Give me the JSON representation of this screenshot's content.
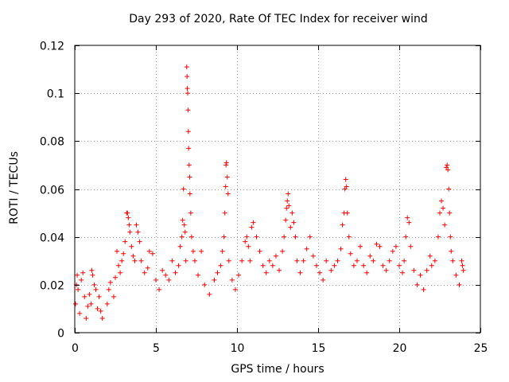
{
  "chart_data": {
    "type": "scatter",
    "title": "Day 293 of 2020, Rate Of TEC Index for receiver wind",
    "xlabel": "GPS time / hours",
    "ylabel": "ROTI / TECUs",
    "xlim": [
      0,
      25
    ],
    "ylim": [
      0,
      0.12
    ],
    "xticks": [
      "0",
      "5",
      "10",
      "15",
      "20",
      "25"
    ],
    "yticks": [
      "0",
      "0.02",
      "0.04",
      "0.06",
      "0.08",
      "0.1",
      "0.12"
    ],
    "grid": true,
    "marker": "+",
    "color": "#ff0000",
    "series": [
      {
        "points": [
          [
            0.05,
            0.012
          ],
          [
            0.1,
            0.02
          ],
          [
            0.15,
            0.024
          ],
          [
            0.2,
            0.018
          ],
          [
            0.3,
            0.008
          ],
          [
            0.4,
            0.022
          ],
          [
            0.5,
            0.025
          ],
          [
            0.6,
            0.015
          ],
          [
            0.7,
            0.006
          ],
          [
            0.8,
            0.011
          ],
          [
            0.9,
            0.016
          ],
          [
            1.0,
            0.012
          ],
          [
            1.05,
            0.026
          ],
          [
            1.1,
            0.024
          ],
          [
            1.2,
            0.02
          ],
          [
            1.3,
            0.018
          ],
          [
            1.4,
            0.01
          ],
          [
            1.5,
            0.015
          ],
          [
            1.6,
            0.009
          ],
          [
            1.7,
            0.006
          ],
          [
            2.0,
            0.012
          ],
          [
            2.1,
            0.018
          ],
          [
            2.2,
            0.021
          ],
          [
            2.4,
            0.015
          ],
          [
            2.5,
            0.023
          ],
          [
            2.6,
            0.034
          ],
          [
            2.7,
            0.028
          ],
          [
            2.8,
            0.025
          ],
          [
            2.9,
            0.03
          ],
          [
            3.0,
            0.033
          ],
          [
            3.1,
            0.038
          ],
          [
            3.2,
            0.05
          ],
          [
            3.25,
            0.05
          ],
          [
            3.3,
            0.048
          ],
          [
            3.35,
            0.045
          ],
          [
            3.4,
            0.042
          ],
          [
            3.5,
            0.036
          ],
          [
            3.6,
            0.032
          ],
          [
            3.7,
            0.03
          ],
          [
            3.8,
            0.045
          ],
          [
            3.9,
            0.042
          ],
          [
            4.0,
            0.038
          ],
          [
            4.1,
            0.03
          ],
          [
            4.3,
            0.025
          ],
          [
            4.5,
            0.027
          ],
          [
            4.6,
            0.034
          ],
          [
            4.8,
            0.033
          ],
          [
            5.0,
            0.022
          ],
          [
            5.2,
            0.018
          ],
          [
            5.4,
            0.026
          ],
          [
            5.6,
            0.024
          ],
          [
            5.8,
            0.022
          ],
          [
            6.0,
            0.03
          ],
          [
            6.2,
            0.025
          ],
          [
            6.4,
            0.028
          ],
          [
            6.5,
            0.036
          ],
          [
            6.6,
            0.04
          ],
          [
            6.65,
            0.047
          ],
          [
            6.7,
            0.06
          ],
          [
            6.75,
            0.045
          ],
          [
            6.8,
            0.042
          ],
          [
            6.85,
            0.03
          ],
          [
            6.9,
            0.111
          ],
          [
            6.92,
            0.107
          ],
          [
            6.94,
            0.102
          ],
          [
            6.96,
            0.1
          ],
          [
            6.98,
            0.093
          ],
          [
            7.0,
            0.084
          ],
          [
            7.02,
            0.077
          ],
          [
            7.05,
            0.07
          ],
          [
            7.08,
            0.065
          ],
          [
            7.1,
            0.058
          ],
          [
            7.15,
            0.05
          ],
          [
            7.2,
            0.04
          ],
          [
            7.3,
            0.034
          ],
          [
            7.4,
            0.03
          ],
          [
            7.6,
            0.024
          ],
          [
            7.8,
            0.034
          ],
          [
            8.0,
            0.02
          ],
          [
            8.3,
            0.016
          ],
          [
            8.6,
            0.022
          ],
          [
            8.8,
            0.025
          ],
          [
            9.0,
            0.028
          ],
          [
            9.1,
            0.034
          ],
          [
            9.2,
            0.04
          ],
          [
            9.25,
            0.05
          ],
          [
            9.3,
            0.061
          ],
          [
            9.32,
            0.07
          ],
          [
            9.35,
            0.071
          ],
          [
            9.4,
            0.065
          ],
          [
            9.45,
            0.058
          ],
          [
            9.5,
            0.03
          ],
          [
            9.7,
            0.022
          ],
          [
            9.9,
            0.018
          ],
          [
            10.1,
            0.024
          ],
          [
            10.3,
            0.03
          ],
          [
            10.5,
            0.038
          ],
          [
            10.6,
            0.04
          ],
          [
            10.7,
            0.036
          ],
          [
            10.8,
            0.03
          ],
          [
            10.9,
            0.044
          ],
          [
            11.0,
            0.046
          ],
          [
            11.2,
            0.04
          ],
          [
            11.4,
            0.034
          ],
          [
            11.6,
            0.028
          ],
          [
            11.8,
            0.025
          ],
          [
            12.0,
            0.03
          ],
          [
            12.2,
            0.028
          ],
          [
            12.4,
            0.032
          ],
          [
            12.6,
            0.026
          ],
          [
            12.8,
            0.034
          ],
          [
            12.9,
            0.04
          ],
          [
            13.0,
            0.047
          ],
          [
            13.05,
            0.052
          ],
          [
            13.1,
            0.055
          ],
          [
            13.15,
            0.058
          ],
          [
            13.2,
            0.053
          ],
          [
            13.3,
            0.044
          ],
          [
            13.4,
            0.05
          ],
          [
            13.5,
            0.046
          ],
          [
            13.6,
            0.04
          ],
          [
            13.7,
            0.03
          ],
          [
            13.9,
            0.025
          ],
          [
            14.1,
            0.03
          ],
          [
            14.3,
            0.035
          ],
          [
            14.5,
            0.04
          ],
          [
            14.7,
            0.032
          ],
          [
            14.9,
            0.028
          ],
          [
            15.1,
            0.025
          ],
          [
            15.3,
            0.022
          ],
          [
            15.5,
            0.03
          ],
          [
            15.8,
            0.026
          ],
          [
            16.0,
            0.028
          ],
          [
            16.2,
            0.03
          ],
          [
            16.4,
            0.035
          ],
          [
            16.5,
            0.045
          ],
          [
            16.6,
            0.05
          ],
          [
            16.65,
            0.06
          ],
          [
            16.7,
            0.064
          ],
          [
            16.75,
            0.061
          ],
          [
            16.8,
            0.05
          ],
          [
            16.9,
            0.04
          ],
          [
            17.0,
            0.033
          ],
          [
            17.2,
            0.028
          ],
          [
            17.4,
            0.03
          ],
          [
            17.6,
            0.036
          ],
          [
            17.8,
            0.028
          ],
          [
            18.0,
            0.025
          ],
          [
            18.2,
            0.032
          ],
          [
            18.4,
            0.03
          ],
          [
            18.6,
            0.037
          ],
          [
            18.8,
            0.036
          ],
          [
            19.0,
            0.028
          ],
          [
            19.2,
            0.026
          ],
          [
            19.4,
            0.03
          ],
          [
            19.6,
            0.034
          ],
          [
            19.8,
            0.036
          ],
          [
            20.0,
            0.028
          ],
          [
            20.2,
            0.025
          ],
          [
            20.3,
            0.03
          ],
          [
            20.4,
            0.04
          ],
          [
            20.5,
            0.048
          ],
          [
            20.6,
            0.046
          ],
          [
            20.7,
            0.036
          ],
          [
            20.9,
            0.026
          ],
          [
            21.1,
            0.02
          ],
          [
            21.3,
            0.024
          ],
          [
            21.5,
            0.018
          ],
          [
            21.7,
            0.026
          ],
          [
            21.9,
            0.032
          ],
          [
            22.0,
            0.028
          ],
          [
            22.2,
            0.03
          ],
          [
            22.4,
            0.04
          ],
          [
            22.5,
            0.05
          ],
          [
            22.6,
            0.055
          ],
          [
            22.7,
            0.052
          ],
          [
            22.8,
            0.045
          ],
          [
            22.9,
            0.069
          ],
          [
            22.95,
            0.07
          ],
          [
            23.0,
            0.068
          ],
          [
            23.05,
            0.06
          ],
          [
            23.1,
            0.05
          ],
          [
            23.15,
            0.04
          ],
          [
            23.2,
            0.034
          ],
          [
            23.3,
            0.03
          ],
          [
            23.5,
            0.024
          ],
          [
            23.7,
            0.02
          ],
          [
            23.85,
            0.03
          ],
          [
            23.9,
            0.028
          ],
          [
            23.95,
            0.026
          ]
        ]
      }
    ]
  }
}
